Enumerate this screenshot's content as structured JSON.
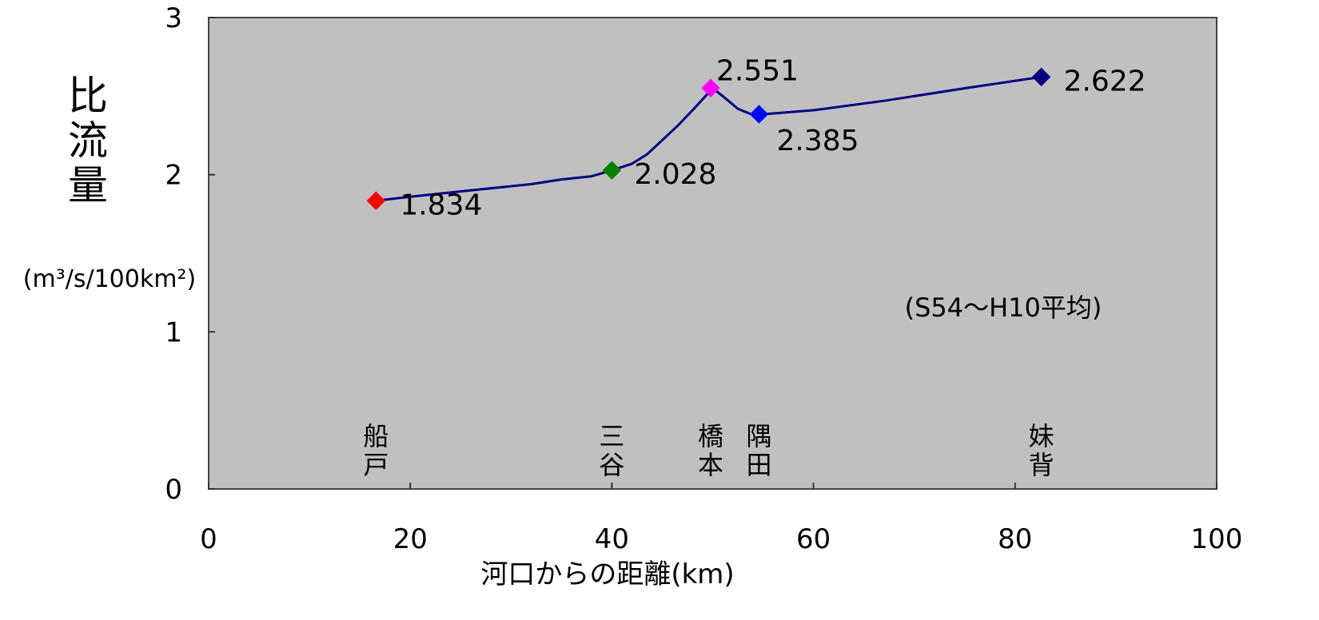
{
  "chart_data": {
    "type": "line",
    "xlabel": "河口からの距離(km)",
    "ylabel": "比流量",
    "yunit": "(m³/s/100km²)",
    "note": "(S54～H10平均)",
    "xlim": [
      0,
      100
    ],
    "ylim": [
      0,
      3
    ],
    "xticks": [
      "0",
      "20",
      "40",
      "60",
      "80",
      "100"
    ],
    "yticks": [
      "0",
      "1",
      "2",
      "3"
    ],
    "grid": false,
    "colors": {
      "plot_bg": "#c0c0c0",
      "line": "#000080"
    },
    "line_x": [
      16.6,
      20,
      26,
      32,
      35,
      38,
      40,
      42,
      43.5,
      45,
      46.5,
      48,
      49,
      50,
      51,
      52.5,
      54,
      55,
      60,
      67,
      75,
      82.6
    ],
    "line_y": [
      1.834,
      1.86,
      1.9,
      1.94,
      1.97,
      1.99,
      2.028,
      2.07,
      2.13,
      2.22,
      2.31,
      2.41,
      2.48,
      2.551,
      2.5,
      2.42,
      2.38,
      2.385,
      2.41,
      2.47,
      2.55,
      2.622
    ],
    "points": [
      {
        "site": [
          "船",
          "戸"
        ],
        "x": 16.6,
        "y": 1.834,
        "label": "1.834",
        "color": "#ff0000"
      },
      {
        "site": [
          "三",
          "谷"
        ],
        "x": 40.0,
        "y": 2.028,
        "label": "2.028",
        "color": "#008000"
      },
      {
        "site": [
          "橋",
          "本"
        ],
        "x": 49.8,
        "y": 2.551,
        "label": "2.551",
        "color": "#ff00ff"
      },
      {
        "site": [
          "隅",
          "田"
        ],
        "x": 54.6,
        "y": 2.385,
        "label": "2.385",
        "color": "#0000ff"
      },
      {
        "site": [
          "妹",
          "背"
        ],
        "x": 82.6,
        "y": 2.622,
        "label": "2.622",
        "color": "#000080"
      }
    ]
  }
}
